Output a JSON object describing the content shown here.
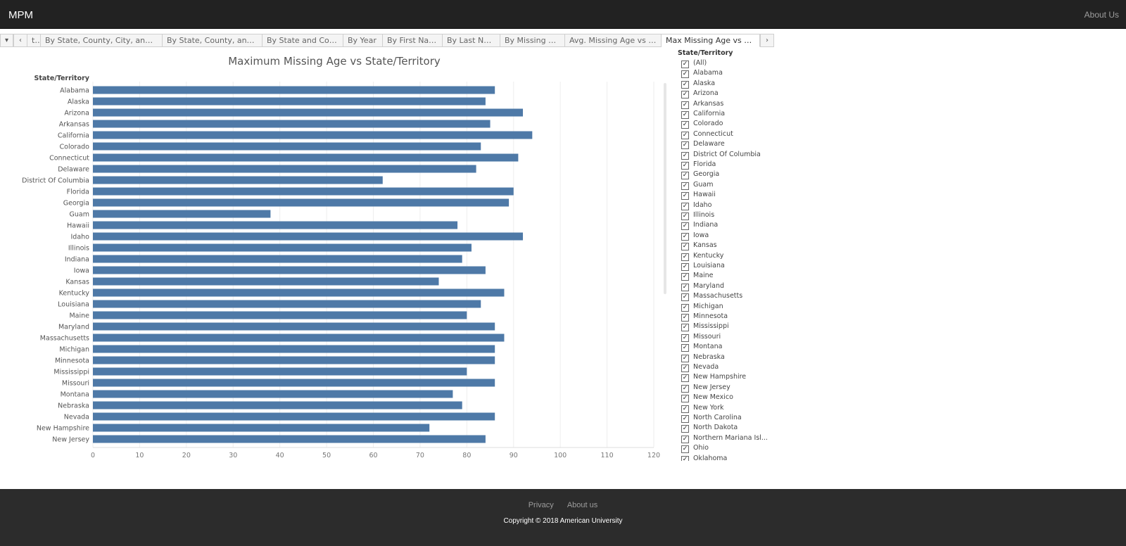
{
  "navbar": {
    "brand": "MPM",
    "about": "About Us"
  },
  "tabs": {
    "prev_label": "‹",
    "next_label": "›",
    "menu_label": "▾",
    "items": [
      {
        "label": "te"
      },
      {
        "label": "By State, County, City, and Ge..."
      },
      {
        "label": "By State, County, and City"
      },
      {
        "label": "By State and County"
      },
      {
        "label": "By Year"
      },
      {
        "label": "By First Name"
      },
      {
        "label": "By Last Name"
      },
      {
        "label": "By Missing Age"
      },
      {
        "label": "Avg. Missing Age vs State"
      },
      {
        "label": "Max Missing Age vs State",
        "active": true
      }
    ]
  },
  "chart_data": {
    "type": "bar",
    "orientation": "horizontal",
    "title": "Maximum Missing Age vs State/Territory",
    "ylabel": "State/Territory",
    "xlabel": "",
    "xlim": [
      0,
      120
    ],
    "xticks": [
      0,
      10,
      20,
      30,
      40,
      50,
      60,
      70,
      80,
      90,
      100,
      110,
      120
    ],
    "grid": true,
    "bar_color": "#4e79a7",
    "categories": [
      "Alabama",
      "Alaska",
      "Arizona",
      "Arkansas",
      "California",
      "Colorado",
      "Connecticut",
      "Delaware",
      "District Of Columbia",
      "Florida",
      "Georgia",
      "Guam",
      "Hawaii",
      "Idaho",
      "Illinois",
      "Indiana",
      "Iowa",
      "Kansas",
      "Kentucky",
      "Louisiana",
      "Maine",
      "Maryland",
      "Massachusetts",
      "Michigan",
      "Minnesota",
      "Mississippi",
      "Missouri",
      "Montana",
      "Nebraska",
      "Nevada",
      "New Hampshire",
      "New Jersey"
    ],
    "values": [
      86,
      84,
      92,
      85,
      94,
      83,
      91,
      82,
      62,
      90,
      89,
      38,
      78,
      92,
      81,
      79,
      84,
      74,
      88,
      83,
      80,
      86,
      88,
      86,
      86,
      80,
      86,
      77,
      79,
      86,
      72,
      84
    ]
  },
  "filter": {
    "title": "State/Territory",
    "items": [
      "(All)",
      "Alabama",
      "Alaska",
      "Arizona",
      "Arkansas",
      "California",
      "Colorado",
      "Connecticut",
      "Delaware",
      "District Of Columbia",
      "Florida",
      "Georgia",
      "Guam",
      "Hawaii",
      "Idaho",
      "Illinois",
      "Indiana",
      "Iowa",
      "Kansas",
      "Kentucky",
      "Louisiana",
      "Maine",
      "Maryland",
      "Massachusetts",
      "Michigan",
      "Minnesota",
      "Mississippi",
      "Missouri",
      "Montana",
      "Nebraska",
      "Nevada",
      "New Hampshire",
      "New Jersey",
      "New Mexico",
      "New York",
      "North Carolina",
      "North Dakota",
      "Northern Mariana Isl...",
      "Ohio",
      "Oklahoma"
    ],
    "checked": true
  },
  "footer": {
    "privacy": "Privacy",
    "about": "About us",
    "copyright": "Copyright © 2018 American University"
  }
}
